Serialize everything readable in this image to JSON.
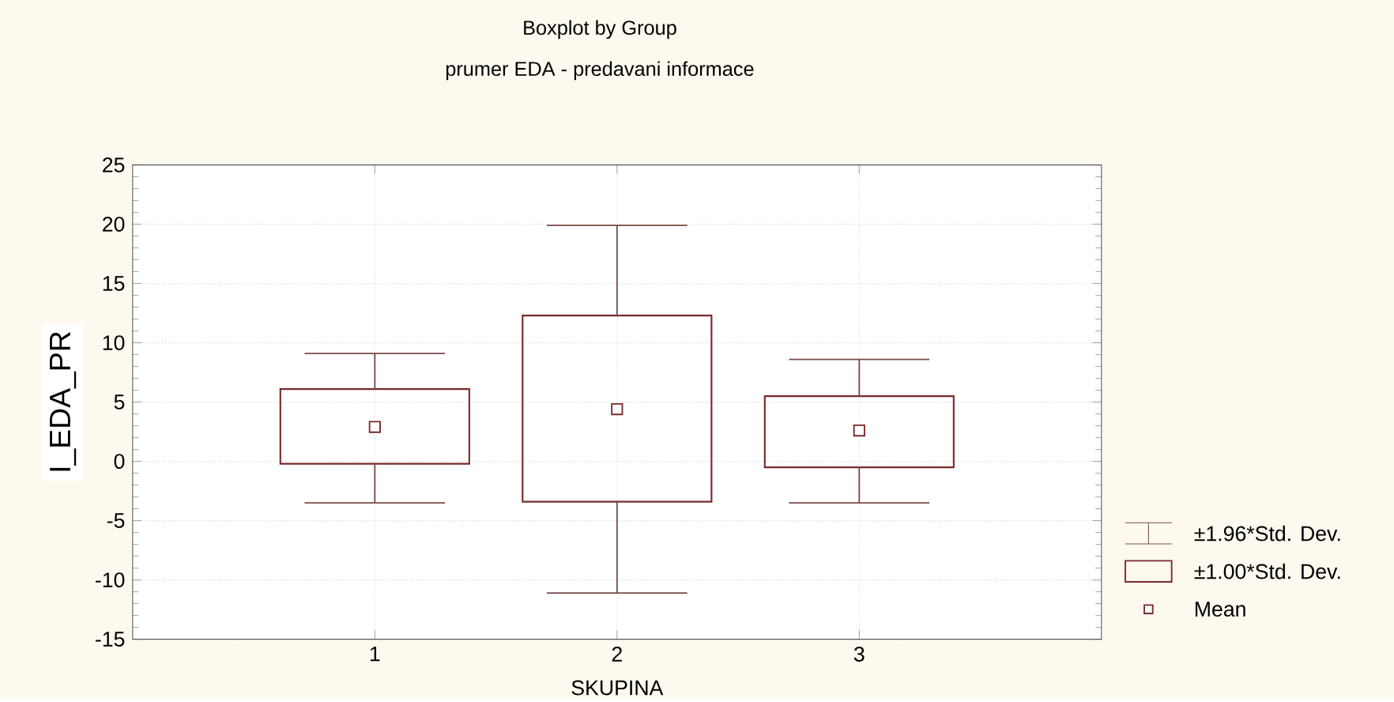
{
  "chart_data": {
    "type": "box",
    "title": "Boxplot by Group",
    "subtitle": "prumer EDA - predavani informace",
    "xlabel": "SKUPINA",
    "ylabel": "I_EDA_PR",
    "categories": [
      "1",
      "2",
      "3"
    ],
    "boxes": [
      {
        "low": -3.5,
        "q1": -0.2,
        "q3": 6.1,
        "high": 9.1,
        "mean": 2.9
      },
      {
        "low": -11.1,
        "q1": -3.4,
        "q3": 12.3,
        "high": 19.9,
        "mean": 4.4
      },
      {
        "low": -3.5,
        "q1": -0.5,
        "q3": 5.5,
        "high": 8.6,
        "mean": 2.6
      }
    ],
    "color": "#7a2a2a",
    "ylim": [
      -15,
      25
    ],
    "yticks": [
      -15,
      -10,
      -5,
      0,
      5,
      10,
      15,
      20,
      25
    ],
    "grid": true,
    "marker": "square",
    "annotations": [
      "±1.96*Std. Dev.",
      "±1.00*Std. Dev.",
      "Mean"
    ]
  }
}
